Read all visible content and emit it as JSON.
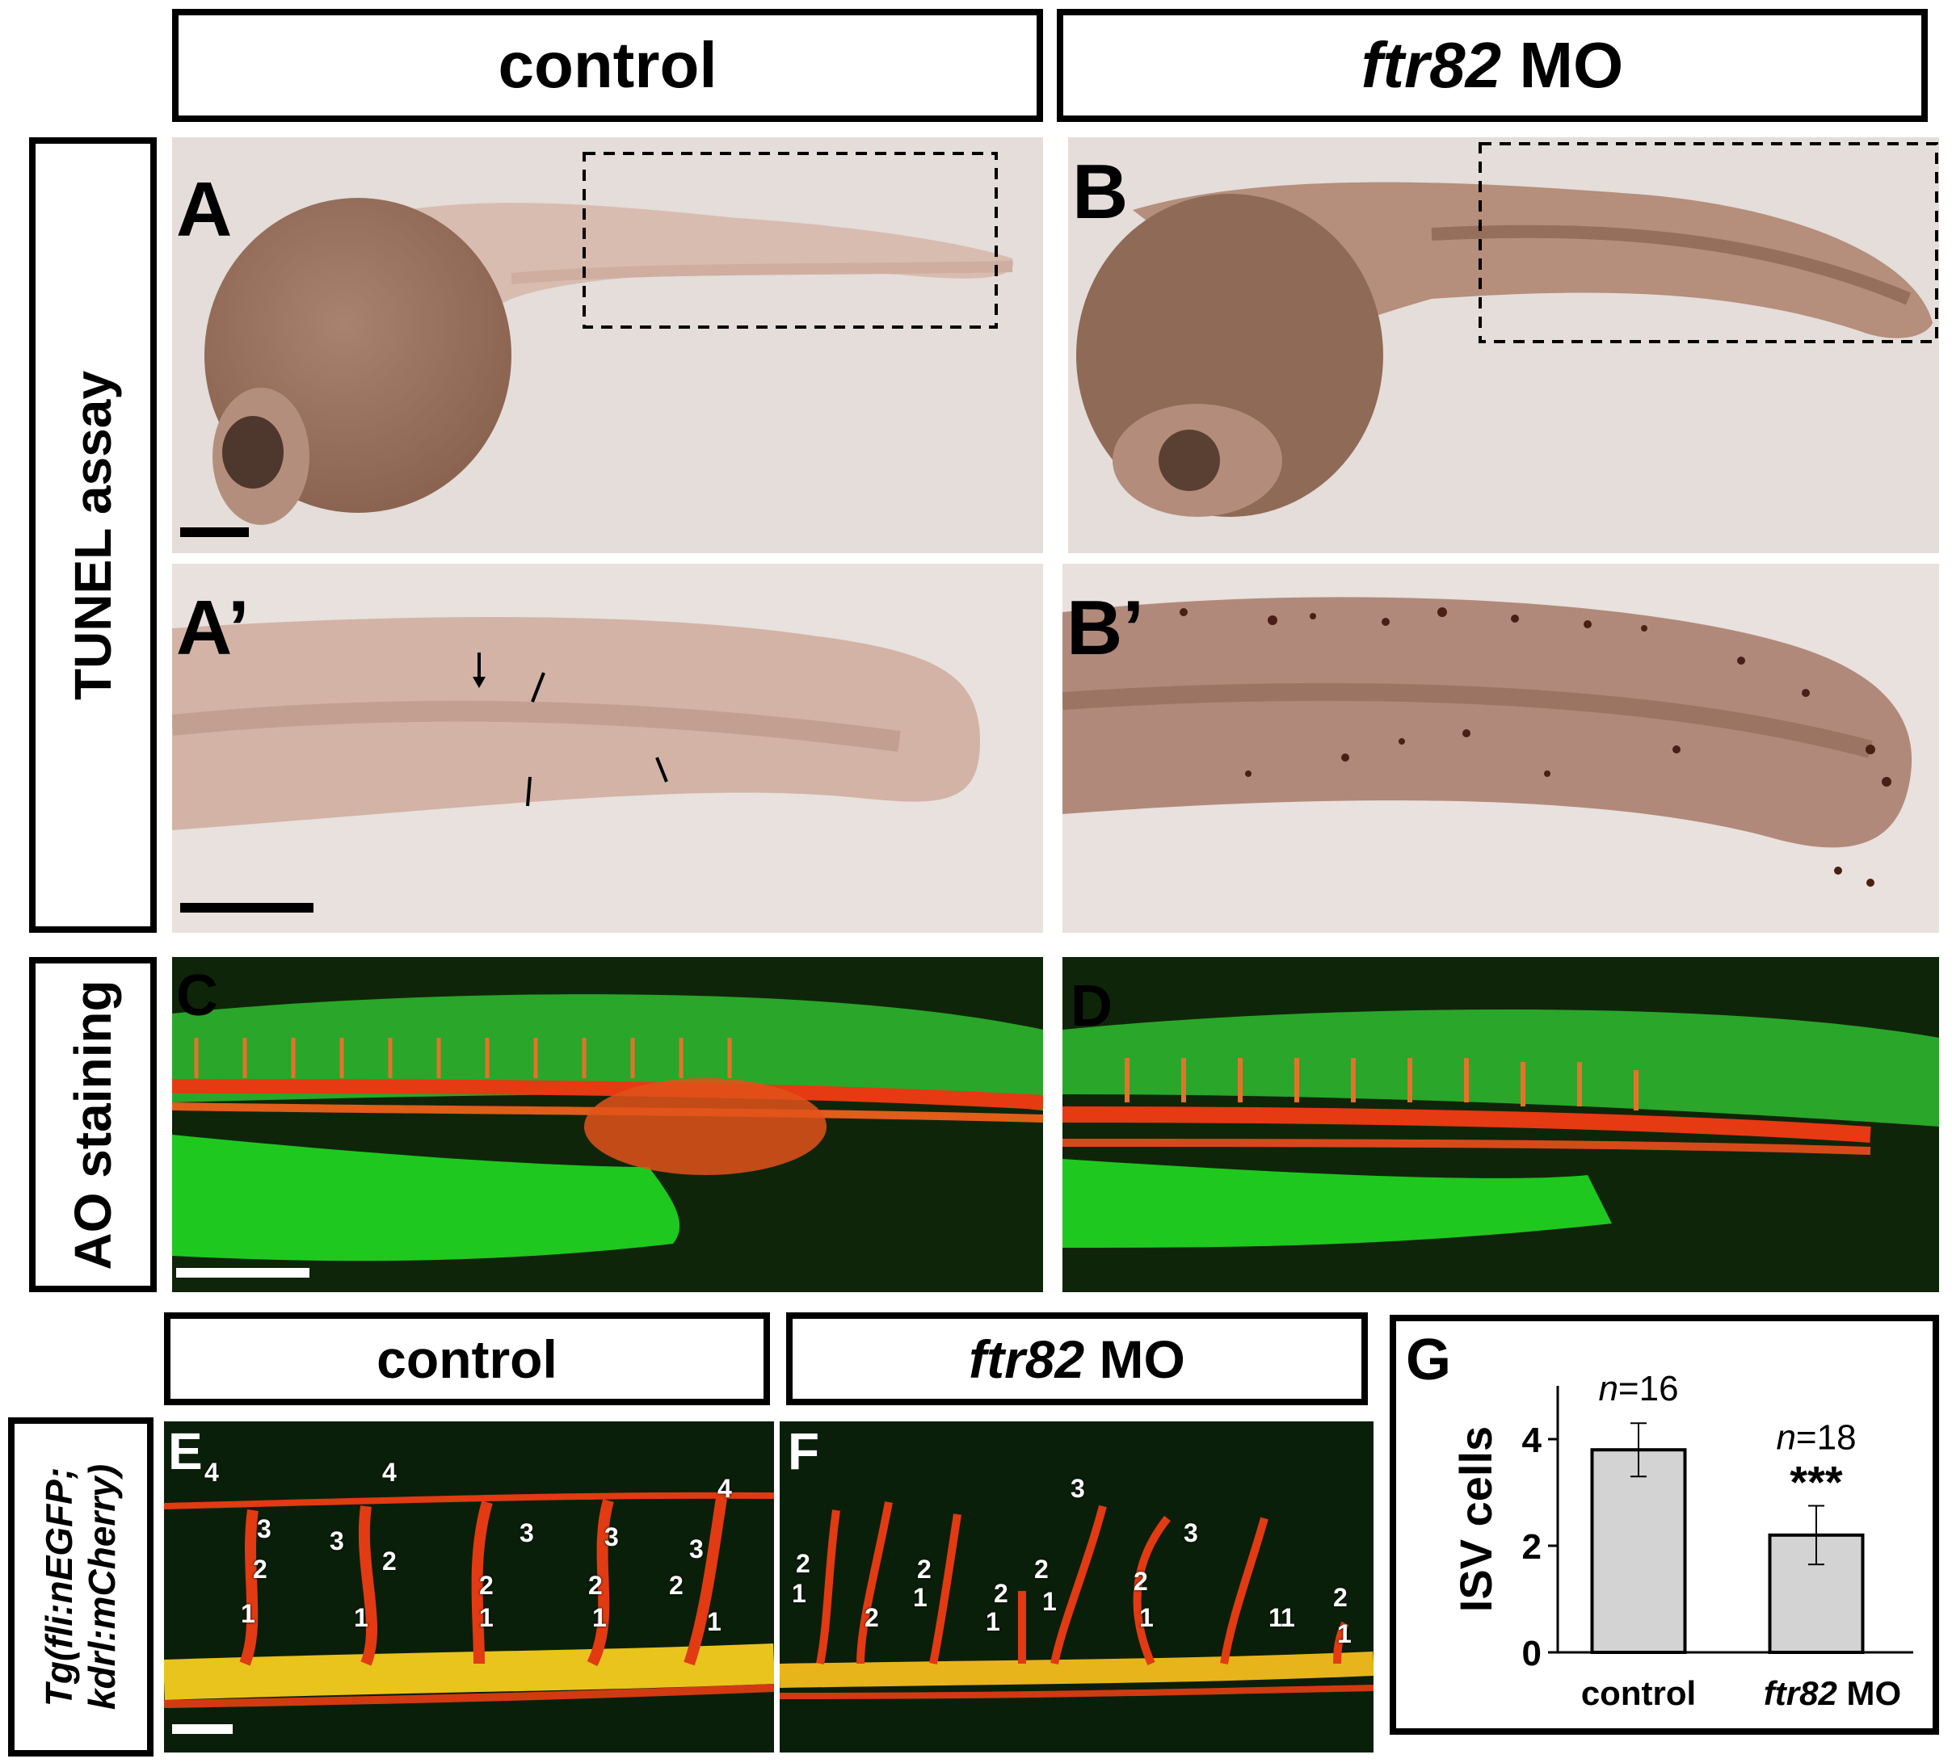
{
  "headers": {
    "top_control": "control",
    "top_mo_gene": "ftr82",
    "top_mo_suffix": " MO",
    "bottom_control": "control",
    "bottom_mo_gene": "ftr82",
    "bottom_mo_suffix": " MO"
  },
  "side_labels": {
    "tunel": "TUNEL assay",
    "ao": "AO staining",
    "tg_line1": "Tg(fli:nEGFP;",
    "tg_line2": "kdrl:mCherry)"
  },
  "panel_labels": {
    "A": "A",
    "B": "B",
    "A_prime": "A’",
    "B_prime": "B’",
    "C": "C",
    "D": "D",
    "E": "E",
    "F": "F",
    "G": "G"
  },
  "isv_numbers_E": [
    "4",
    "4",
    "4",
    "3",
    "2",
    "1",
    "3",
    "2",
    "1",
    "3",
    "2",
    "1",
    "3",
    "2",
    "1",
    "3",
    "2",
    "1"
  ],
  "isv_numbers_F": [
    "3",
    "2",
    "1",
    "2",
    "1",
    "2",
    "1",
    "2",
    "1",
    "2",
    "1",
    "3",
    "2",
    "1",
    "2",
    "1",
    "1"
  ],
  "chart_data": {
    "type": "bar",
    "title": "",
    "xlabel": "",
    "ylabel": "ISV cells",
    "ylim": [
      0,
      5
    ],
    "yticks": [
      "0",
      "2",
      "4"
    ],
    "categories": [
      "control",
      "ftr82 MO"
    ],
    "category_parts": [
      {
        "gene": "",
        "suffix": "control"
      },
      {
        "gene": "ftr82",
        "suffix": " MO"
      }
    ],
    "values": [
      3.8,
      2.2
    ],
    "errors": [
      0.5,
      0.55
    ],
    "n_labels": [
      "n=16",
      "n=18"
    ],
    "significance": [
      "",
      "***"
    ],
    "bar_color": "#d3d3d3",
    "grid": false
  },
  "colors": {
    "tunel_background": "#e4ddd9",
    "embryo_brown": "#a27a66",
    "fluor_green": "#22c022",
    "vessel_red": "#e23a12",
    "merged_yellow": "#e8d41c"
  }
}
